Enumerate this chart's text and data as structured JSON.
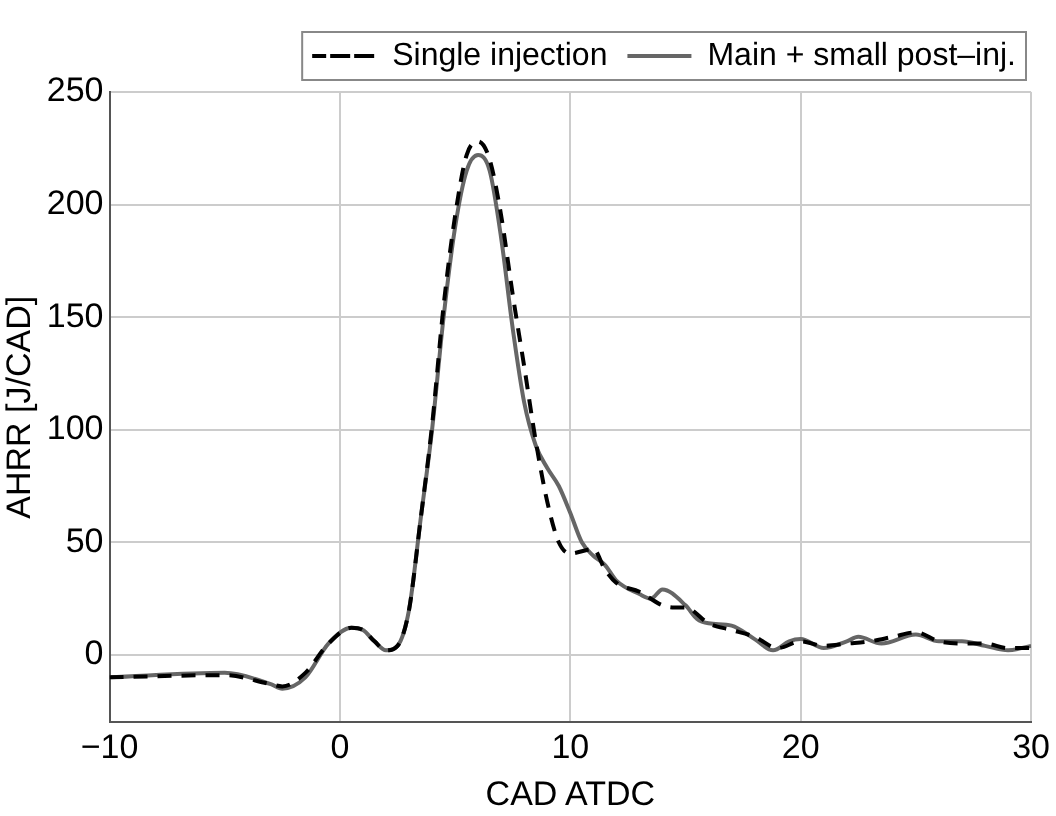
{
  "chart_data": {
    "type": "line",
    "xlabel": "CAD ATDC",
    "ylabel": "AHRR [J/CAD]",
    "xlim": [
      -10,
      30
    ],
    "ylim": [
      -30,
      250
    ],
    "xticks": [
      -10,
      0,
      10,
      20,
      30
    ],
    "yticks": [
      0,
      50,
      100,
      150,
      200,
      250
    ],
    "grid": true,
    "legend": "top right",
    "marker": "none",
    "series": [
      {
        "name": "Single injection",
        "color": "#000000",
        "line_style": "dashed",
        "x": [
          -10,
          -5,
          -3,
          -2.5,
          -1.5,
          -0.5,
          0.5,
          1,
          1.5,
          2,
          2.5,
          3,
          3.5,
          4,
          4.5,
          5,
          5.5,
          6,
          6.5,
          7,
          7.5,
          8,
          8.5,
          9,
          9.5,
          10,
          11,
          11.5,
          12,
          13,
          14,
          14.5,
          15,
          16,
          17,
          18,
          19,
          20,
          21,
          22,
          23,
          24,
          25,
          26,
          27,
          28,
          29,
          30
        ],
        "values": [
          -10,
          -9,
          -13,
          -14,
          -8,
          5,
          12,
          11,
          6,
          2,
          4,
          20,
          60,
          102,
          155,
          195,
          222,
          228,
          220,
          195,
          160,
          128,
          95,
          68,
          50,
          45,
          47,
          38,
          32,
          28,
          22,
          21,
          21,
          14,
          11,
          8,
          3,
          6,
          4,
          5,
          6,
          8,
          10,
          6,
          5,
          5,
          3,
          3
        ]
      },
      {
        "name": "Main + small post–inj.",
        "color": "#666666",
        "line_style": "solid",
        "x": [
          -10,
          -5,
          -3,
          -2.5,
          -1.5,
          -0.5,
          0.5,
          1,
          1.5,
          2,
          2.5,
          3,
          3.5,
          4,
          4.5,
          5,
          5.5,
          6,
          6.5,
          7,
          7.5,
          8,
          8.5,
          9,
          9.5,
          10,
          10.5,
          11,
          11.5,
          12,
          13,
          13.5,
          14,
          15,
          15.5,
          16,
          17,
          18,
          18.8,
          19.5,
          20,
          21,
          22,
          22.5,
          23.5,
          25,
          26,
          27,
          28,
          29,
          30
        ],
        "values": [
          -10,
          -8,
          -13,
          -15,
          -10,
          5,
          12,
          11,
          6,
          2,
          4,
          20,
          60,
          100,
          150,
          190,
          215,
          222,
          215,
          185,
          145,
          112,
          93,
          83,
          75,
          63,
          50,
          44,
          40,
          33,
          27,
          25,
          29,
          22,
          16,
          14,
          13,
          7,
          2,
          6,
          7,
          3,
          6,
          8,
          5,
          9,
          6,
          6,
          4,
          2,
          4
        ]
      }
    ]
  }
}
